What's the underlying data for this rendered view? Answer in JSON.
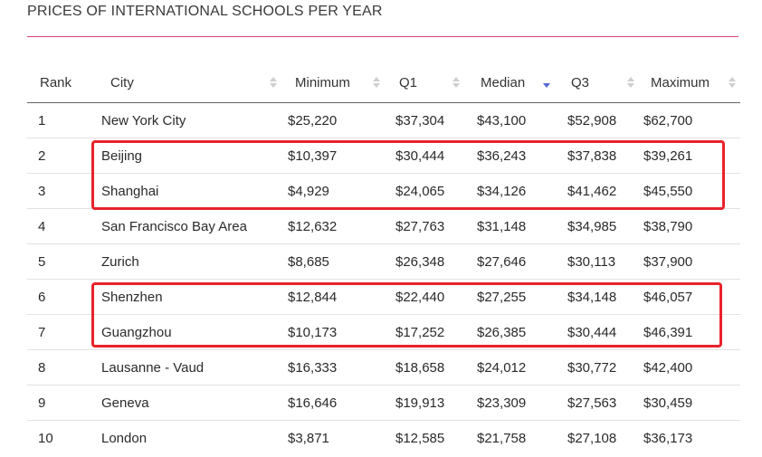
{
  "title": "PRICES OF INTERNATIONAL SCHOOLS PER YEAR",
  "colors": {
    "title_rule": "#d6437e",
    "highlight": "#e8222a",
    "sort_active": "#5566d4"
  },
  "columns": [
    {
      "label": "Rank"
    },
    {
      "label": "City"
    },
    {
      "label": "Minimum"
    },
    {
      "label": "Q1"
    },
    {
      "label": "Median",
      "sorted": "descending"
    },
    {
      "label": "Q3"
    },
    {
      "label": "Maximum"
    }
  ],
  "rows": [
    [
      "1",
      "New York City",
      "$25,220",
      "$37,304",
      "$43,100",
      "$52,908",
      "$62,700"
    ],
    [
      "2",
      "Beijing",
      "$10,397",
      "$30,444",
      "$36,243",
      "$37,838",
      "$39,261"
    ],
    [
      "3",
      "Shanghai",
      "$4,929",
      "$24,065",
      "$34,126",
      "$41,462",
      "$45,550"
    ],
    [
      "4",
      "San Francisco Bay Area",
      "$12,632",
      "$27,763",
      "$31,148",
      "$34,985",
      "$38,790"
    ],
    [
      "5",
      "Zurich",
      "$8,685",
      "$26,348",
      "$27,646",
      "$30,113",
      "$37,900"
    ],
    [
      "6",
      "Shenzhen",
      "$12,844",
      "$22,440",
      "$27,255",
      "$34,148",
      "$46,057"
    ],
    [
      "7",
      "Guangzhou",
      "$10,173",
      "$17,252",
      "$26,385",
      "$30,444",
      "$46,391"
    ],
    [
      "8",
      "Lausanne - Vaud",
      "$16,333",
      "$18,658",
      "$24,012",
      "$30,772",
      "$42,400"
    ],
    [
      "9",
      "Geneva",
      "$16,646",
      "$19,913",
      "$23,309",
      "$27,563",
      "$30,459"
    ],
    [
      "10",
      "London",
      "$3,871",
      "$12,585",
      "$21,758",
      "$27,108",
      "$36,173"
    ]
  ]
}
